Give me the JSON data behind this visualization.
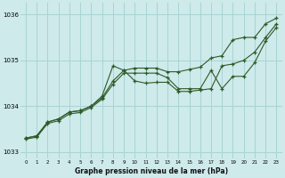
{
  "title": "Graphe pression niveau de la mer (hPa)",
  "background_color": "#ceeaea",
  "grid_color": "#a8d4d4",
  "line_color": "#2d5a27",
  "xlim": [
    -0.5,
    23.5
  ],
  "ylim": [
    1032.85,
    1036.25
  ],
  "yticks": [
    1033,
    1034,
    1035,
    1036
  ],
  "xticks": [
    0,
    1,
    2,
    3,
    4,
    5,
    6,
    7,
    8,
    9,
    10,
    11,
    12,
    13,
    14,
    15,
    16,
    17,
    18,
    19,
    20,
    21,
    22,
    23
  ],
  "line1_x": [
    0,
    1,
    2,
    3,
    4,
    5,
    6,
    7,
    8,
    9,
    10,
    11,
    12,
    13,
    14,
    15,
    16,
    17,
    18,
    19,
    20,
    21,
    22,
    23
  ],
  "line1_y": [
    1033.3,
    1033.35,
    1033.65,
    1033.72,
    1033.87,
    1033.9,
    1034.0,
    1034.18,
    1034.55,
    1034.78,
    1034.83,
    1034.83,
    1034.83,
    1034.75,
    1034.75,
    1034.8,
    1034.85,
    1035.05,
    1035.1,
    1035.45,
    1035.5,
    1035.5,
    1035.8,
    1035.92
  ],
  "line2_x": [
    0,
    1,
    2,
    3,
    4,
    5,
    6,
    7,
    8,
    9,
    10,
    11,
    12,
    13,
    14,
    15,
    16,
    17,
    18,
    19,
    20,
    21,
    22,
    23
  ],
  "line2_y": [
    1033.3,
    1033.35,
    1033.65,
    1033.72,
    1033.87,
    1033.9,
    1034.0,
    1034.22,
    1034.88,
    1034.78,
    1034.55,
    1034.5,
    1034.52,
    1034.52,
    1034.32,
    1034.32,
    1034.35,
    1034.38,
    1034.88,
    1034.92,
    1035.0,
    1035.18,
    1035.5,
    1035.8
  ],
  "line3_x": [
    0,
    1,
    2,
    3,
    4,
    5,
    6,
    7,
    8,
    9,
    10,
    11,
    12,
    13,
    14,
    15,
    16,
    17,
    18,
    19,
    20,
    21,
    22,
    23
  ],
  "line3_y": [
    1033.28,
    1033.32,
    1033.62,
    1033.68,
    1033.83,
    1033.86,
    1033.97,
    1034.15,
    1034.48,
    1034.72,
    1034.72,
    1034.72,
    1034.72,
    1034.62,
    1034.38,
    1034.38,
    1034.38,
    1034.78,
    1034.38,
    1034.65,
    1034.65,
    1034.95,
    1035.42,
    1035.72
  ]
}
